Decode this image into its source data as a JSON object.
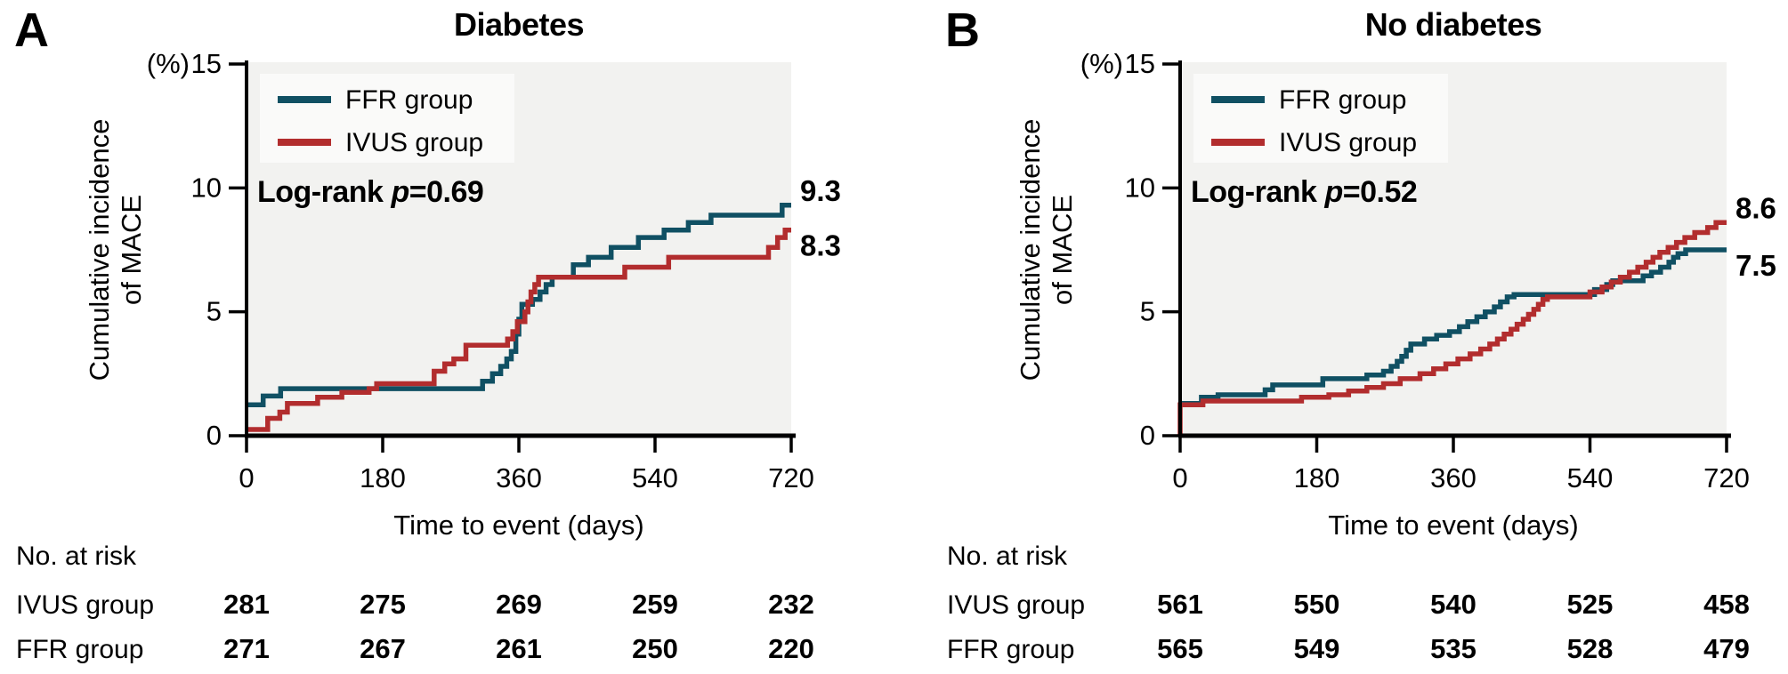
{
  "colors": {
    "teal": "#105063",
    "red": "#b22d2e",
    "plot_bg": "#f2f2f0",
    "legend_bg": "#fafaf9",
    "axis": "#000000"
  },
  "chart_data": [
    {
      "type": "line",
      "panel_letter": "A",
      "title": "Diabetes",
      "ylabel_line1": "Cumulative incidence",
      "ylabel_line2": "of MACE",
      "y_unit": "(%)",
      "xlabel": "Time to event (days)",
      "ylim": [
        0,
        15
      ],
      "yticks": [
        0,
        5,
        10,
        15
      ],
      "xticks": [
        0,
        180,
        360,
        540,
        720
      ],
      "legend_position": "upper-left-inside",
      "grid": false,
      "log_rank": {
        "prefix": "Log-rank",
        "p_symbol": "p",
        "value": "=0.69"
      },
      "legend": [
        {
          "name": "FFR group",
          "color_key": "teal"
        },
        {
          "name": "IVUS group",
          "color_key": "red"
        }
      ],
      "series": [
        {
          "name": "FFR group",
          "color_key": "teal",
          "end_label": "9.3",
          "steps": [
            [
              0,
              1.25
            ],
            [
              22,
              1.6
            ],
            [
              45,
              1.9
            ],
            [
              312,
              2.2
            ],
            [
              325,
              2.5
            ],
            [
              336,
              2.8
            ],
            [
              344,
              3.1
            ],
            [
              350,
              3.4
            ],
            [
              356,
              4.1
            ],
            [
              360,
              4.7
            ],
            [
              364,
              5.3
            ],
            [
              378,
              5.5
            ],
            [
              388,
              5.8
            ],
            [
              396,
              6.1
            ],
            [
              404,
              6.4
            ],
            [
              432,
              6.9
            ],
            [
              452,
              7.2
            ],
            [
              482,
              7.6
            ],
            [
              518,
              8.0
            ],
            [
              552,
              8.3
            ],
            [
              584,
              8.6
            ],
            [
              614,
              8.9
            ],
            [
              708,
              9.3
            ]
          ]
        },
        {
          "name": "IVUS group",
          "color_key": "red",
          "end_label": "8.3",
          "steps": [
            [
              0,
              0.25
            ],
            [
              28,
              0.7
            ],
            [
              44,
              0.95
            ],
            [
              54,
              1.3
            ],
            [
              94,
              1.55
            ],
            [
              126,
              1.75
            ],
            [
              162,
              1.9
            ],
            [
              172,
              2.1
            ],
            [
              248,
              2.6
            ],
            [
              262,
              2.9
            ],
            [
              274,
              3.1
            ],
            [
              290,
              3.65
            ],
            [
              345,
              3.9
            ],
            [
              352,
              4.2
            ],
            [
              358,
              4.6
            ],
            [
              368,
              5.0
            ],
            [
              372,
              5.4
            ],
            [
              376,
              5.8
            ],
            [
              381,
              6.1
            ],
            [
              386,
              6.4
            ],
            [
              500,
              6.8
            ],
            [
              558,
              7.2
            ],
            [
              690,
              7.6
            ],
            [
              702,
              8.0
            ],
            [
              712,
              8.3
            ]
          ]
        }
      ],
      "risk_table": {
        "header": "No. at risk",
        "rows": [
          {
            "label": "IVUS group",
            "color_key": "teal",
            "values": [
              "281",
              "275",
              "269",
              "259",
              "232"
            ]
          },
          {
            "label": "FFR group",
            "color_key": "red",
            "values": [
              "271",
              "267",
              "261",
              "250",
              "220"
            ]
          }
        ]
      }
    },
    {
      "type": "line",
      "panel_letter": "B",
      "title": "No diabetes",
      "ylabel_line1": "Cumulative incidence",
      "ylabel_line2": "of MACE",
      "y_unit": "(%)",
      "xlabel": "Time to event (days)",
      "ylim": [
        0,
        15
      ],
      "yticks": [
        0,
        5,
        10,
        15
      ],
      "xticks": [
        0,
        180,
        360,
        540,
        720
      ],
      "legend_position": "upper-left-inside",
      "grid": false,
      "log_rank": {
        "prefix": "Log-rank",
        "p_symbol": "p",
        "value": "=0.52"
      },
      "legend": [
        {
          "name": "FFR group",
          "color_key": "teal"
        },
        {
          "name": "IVUS group",
          "color_key": "red"
        }
      ],
      "series": [
        {
          "name": "FFR group",
          "color_key": "teal",
          "end_label": "7.5",
          "steps": [
            [
              0,
              1.3
            ],
            [
              28,
              1.55
            ],
            [
              50,
              1.65
            ],
            [
              112,
              1.85
            ],
            [
              122,
              2.05
            ],
            [
              188,
              2.3
            ],
            [
              246,
              2.45
            ],
            [
              268,
              2.6
            ],
            [
              278,
              2.8
            ],
            [
              286,
              3.0
            ],
            [
              292,
              3.2
            ],
            [
              298,
              3.45
            ],
            [
              304,
              3.7
            ],
            [
              322,
              3.9
            ],
            [
              338,
              4.05
            ],
            [
              355,
              4.2
            ],
            [
              368,
              4.4
            ],
            [
              379,
              4.6
            ],
            [
              391,
              4.8
            ],
            [
              402,
              5.0
            ],
            [
              414,
              5.2
            ],
            [
              422,
              5.4
            ],
            [
              431,
              5.6
            ],
            [
              440,
              5.7
            ],
            [
              546,
              5.9
            ],
            [
              562,
              6.1
            ],
            [
              570,
              6.25
            ],
            [
              610,
              6.45
            ],
            [
              621,
              6.6
            ],
            [
              633,
              6.8
            ],
            [
              644,
              7.0
            ],
            [
              650,
              7.2
            ],
            [
              656,
              7.35
            ],
            [
              666,
              7.5
            ]
          ]
        },
        {
          "name": "IVUS group",
          "color_key": "red",
          "end_label": "8.6",
          "steps": [
            [
              0,
              0
            ],
            [
              0,
              1.25
            ],
            [
              30,
              1.4
            ],
            [
              160,
              1.55
            ],
            [
              196,
              1.65
            ],
            [
              222,
              1.8
            ],
            [
              246,
              1.95
            ],
            [
              268,
              2.1
            ],
            [
              290,
              2.3
            ],
            [
              316,
              2.5
            ],
            [
              334,
              2.7
            ],
            [
              350,
              2.9
            ],
            [
              366,
              3.1
            ],
            [
              382,
              3.3
            ],
            [
              396,
              3.5
            ],
            [
              408,
              3.7
            ],
            [
              418,
              3.9
            ],
            [
              427,
              4.1
            ],
            [
              436,
              4.3
            ],
            [
              444,
              4.5
            ],
            [
              452,
              4.7
            ],
            [
              459,
              4.9
            ],
            [
              466,
              5.1
            ],
            [
              472,
              5.3
            ],
            [
              478,
              5.5
            ],
            [
              484,
              5.6
            ],
            [
              540,
              5.8
            ],
            [
              556,
              6.0
            ],
            [
              568,
              6.2
            ],
            [
              580,
              6.4
            ],
            [
              592,
              6.6
            ],
            [
              603,
              6.8
            ],
            [
              614,
              7.0
            ],
            [
              623,
              7.2
            ],
            [
              632,
              7.4
            ],
            [
              643,
              7.6
            ],
            [
              654,
              7.8
            ],
            [
              665,
              8.0
            ],
            [
              678,
              8.2
            ],
            [
              695,
              8.4
            ],
            [
              706,
              8.6
            ]
          ]
        }
      ],
      "risk_table": {
        "header": "No. at risk",
        "rows": [
          {
            "label": "IVUS group",
            "color_key": "teal",
            "values": [
              "561",
              "550",
              "540",
              "525",
              "458"
            ]
          },
          {
            "label": "FFR group",
            "color_key": "red",
            "values": [
              "565",
              "549",
              "535",
              "528",
              "479"
            ]
          }
        ]
      }
    }
  ]
}
